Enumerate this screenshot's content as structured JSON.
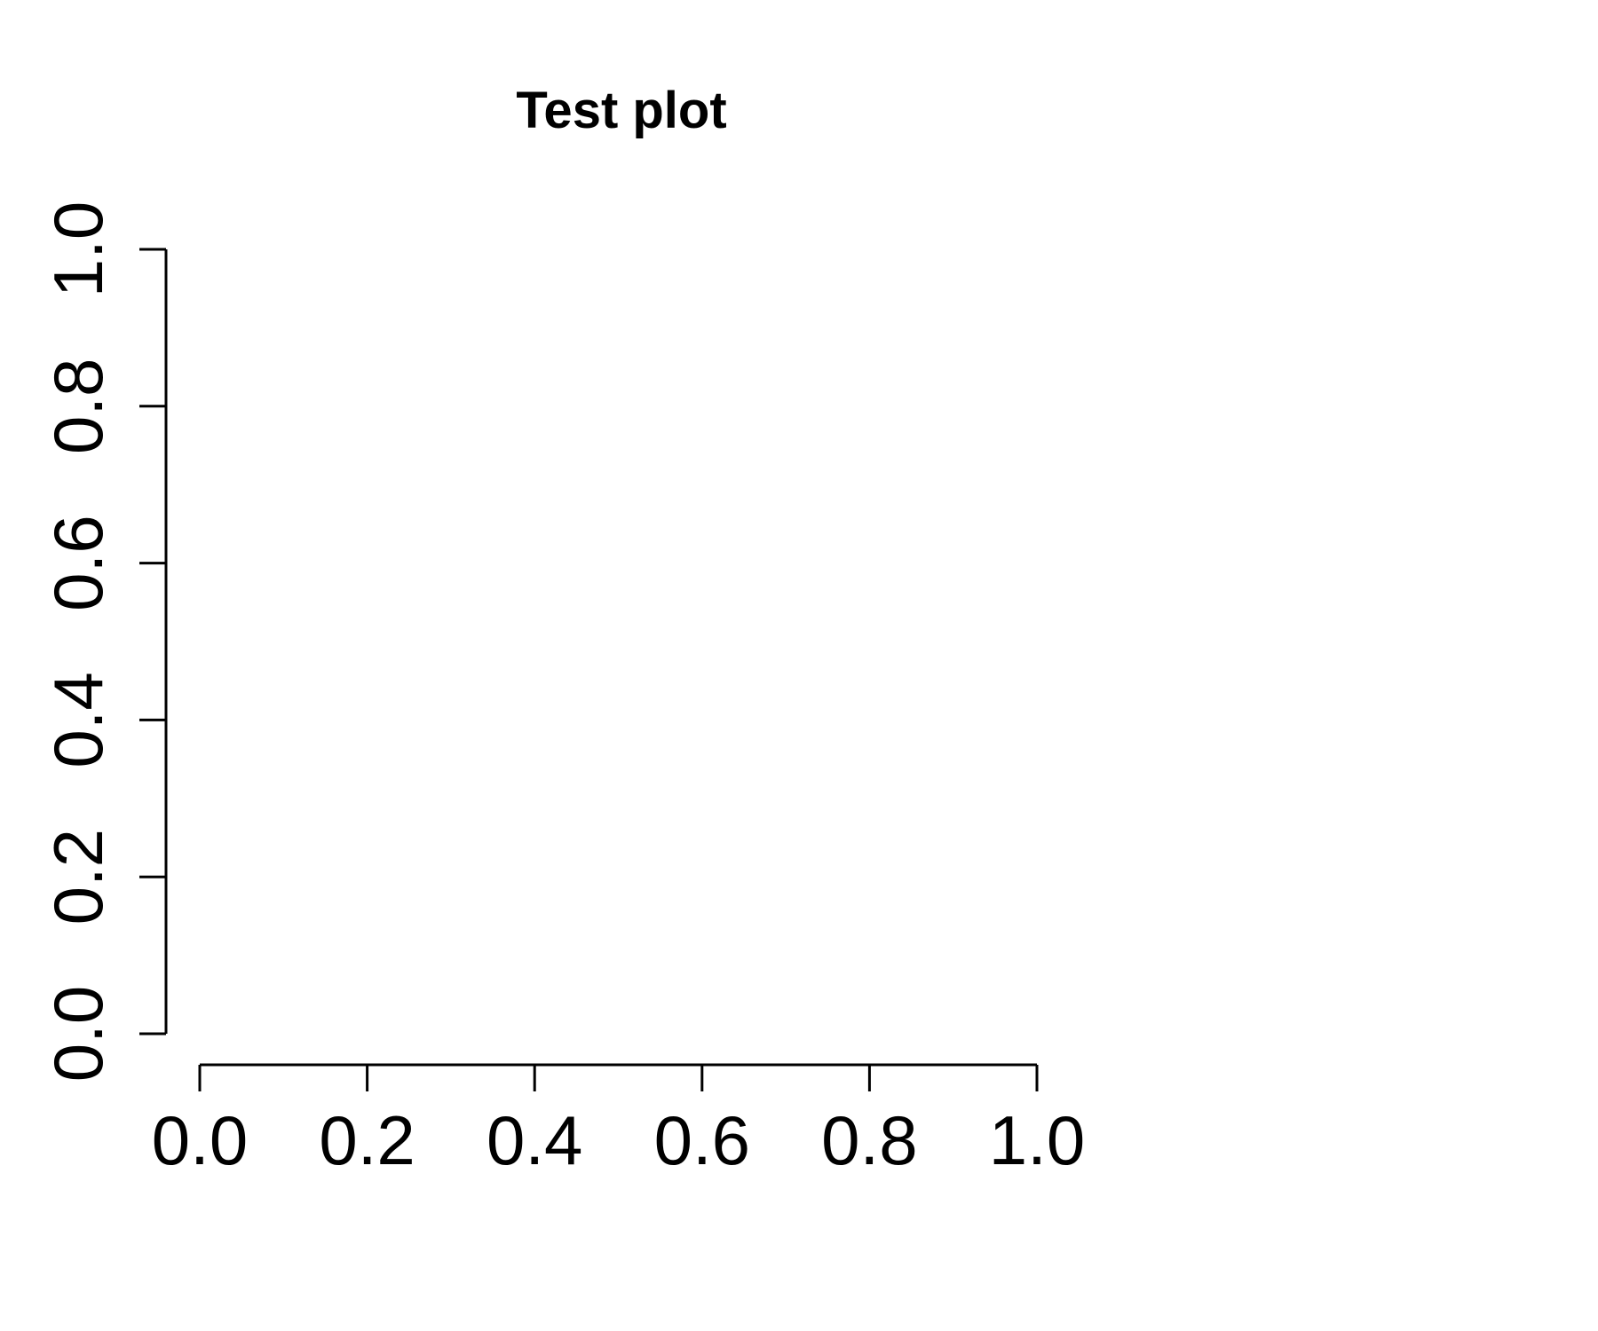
{
  "chart_data": {
    "type": "scatter",
    "title": "Test plot",
    "xlabel": "",
    "ylabel": "",
    "xlim": [
      0,
      1
    ],
    "ylim": [
      0,
      1
    ],
    "x_ticks": [
      0.0,
      0.2,
      0.4,
      0.6,
      0.8,
      1.0
    ],
    "x_tick_labels": [
      "0.0",
      "0.2",
      "0.4",
      "0.6",
      "0.8",
      "1.0"
    ],
    "y_ticks": [
      0.0,
      0.2,
      0.4,
      0.6,
      0.8,
      1.0
    ],
    "y_tick_labels": [
      "0.0",
      "0.2",
      "0.4",
      "0.6",
      "0.8",
      "1.0"
    ],
    "series": [],
    "grid": false,
    "legend": "none",
    "colors": {
      "axis": "#000000",
      "background": "#ffffff"
    }
  }
}
